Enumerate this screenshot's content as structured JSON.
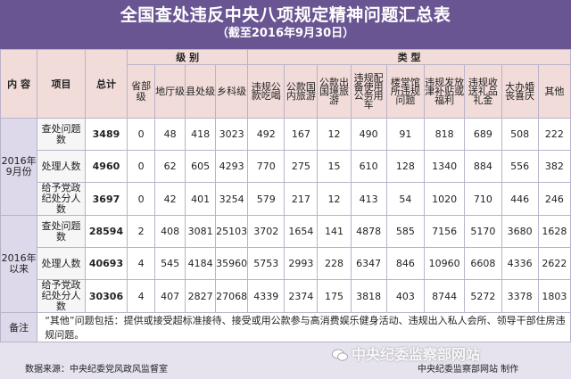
{
  "header": {
    "title": "全国查处违反中央八项规定精神问题汇总表",
    "subtitle": "（截至2016年9月30日）"
  },
  "table": {
    "col_content": "内 容",
    "col_item": "项目",
    "col_total": "总计",
    "group_level": "级  别",
    "group_type": "类  型",
    "levels": [
      "省部级",
      "地厅级",
      "县处级",
      "乡科级"
    ],
    "types": [
      "违规公款吃喝",
      "公款国内旅游",
      "公款出国境旅游",
      "违规配备使用公务用车",
      "楼堂馆所违规问题",
      "违规发放津补贴或福利",
      "违规收送礼品礼金",
      "大办婚丧喜庆",
      "其他"
    ],
    "groups": [
      {
        "label": "2016年9月份",
        "rows": [
          {
            "item": "查处问题数",
            "total": "3489",
            "levels": [
              "0",
              "48",
              "418",
              "3023"
            ],
            "types": [
              "492",
              "167",
              "12",
              "490",
              "91",
              "818",
              "689",
              "508",
              "222"
            ]
          },
          {
            "item": "处理人数",
            "total": "4960",
            "levels": [
              "0",
              "62",
              "605",
              "4293"
            ],
            "types": [
              "770",
              "275",
              "15",
              "610",
              "128",
              "1340",
              "884",
              "556",
              "382"
            ]
          },
          {
            "item": "给予党政纪处分人数",
            "total": "3697",
            "levels": [
              "0",
              "42",
              "401",
              "3254"
            ],
            "types": [
              "579",
              "217",
              "12",
              "413",
              "54",
              "1020",
              "710",
              "446",
              "246"
            ]
          }
        ]
      },
      {
        "label": "2016年以来",
        "rows": [
          {
            "item": "查处问题数",
            "total": "28594",
            "levels": [
              "2",
              "408",
              "3081",
              "25103"
            ],
            "types": [
              "3702",
              "1654",
              "141",
              "4878",
              "585",
              "7156",
              "5170",
              "3680",
              "1628"
            ]
          },
          {
            "item": "处理人数",
            "total": "40693",
            "levels": [
              "4",
              "545",
              "4184",
              "35960"
            ],
            "types": [
              "5753",
              "2993",
              "228",
              "6347",
              "846",
              "10960",
              "6608",
              "4336",
              "2622"
            ]
          },
          {
            "item": "给予党政纪处分人数",
            "total": "30306",
            "levels": [
              "4",
              "407",
              "2827",
              "27068"
            ],
            "types": [
              "4339",
              "2374",
              "175",
              "3818",
              "403",
              "8744",
              "5272",
              "3378",
              "1803"
            ]
          }
        ]
      }
    ],
    "note_label": "备注",
    "note_text": "“其他”问题包括：提供或接受超标准接待、接受或用公款参与高消费娱乐健身活动、违规出入私人会所、领导干部住房违规问题。"
  },
  "footer": {
    "source": "数据来源：中央纪委党风政风监督室",
    "credit": "中央纪委监察部网站  制作",
    "watermark": "中央纪委监察部网站"
  }
}
